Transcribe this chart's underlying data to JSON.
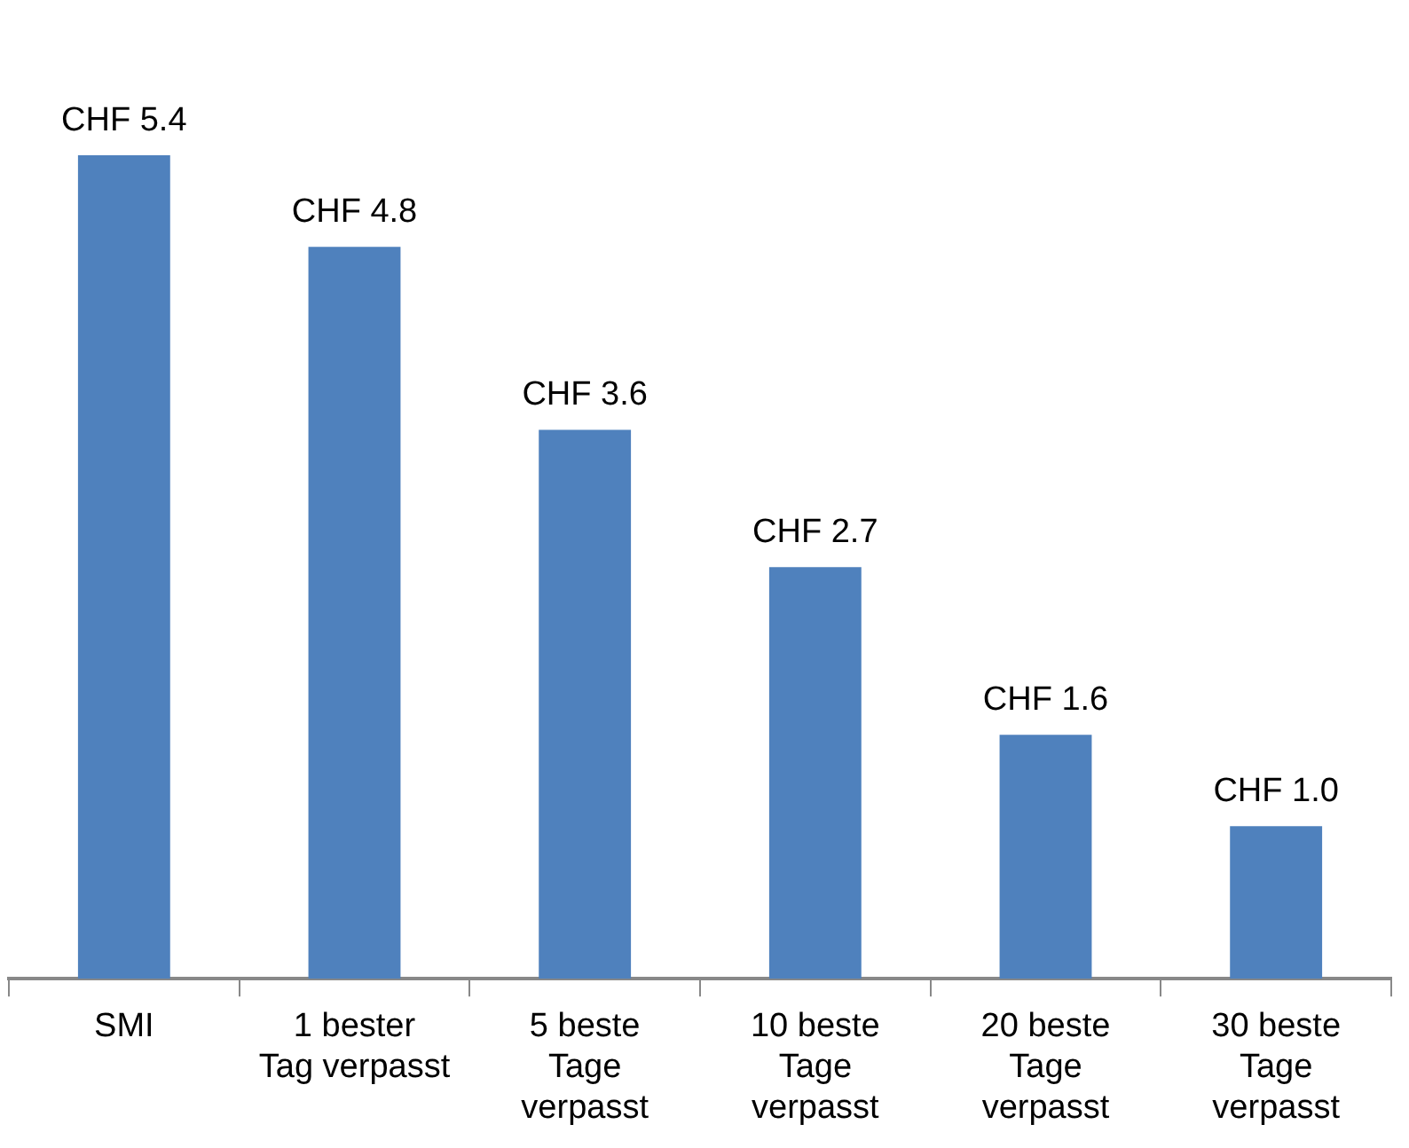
{
  "chart_data": {
    "type": "bar",
    "categories": [
      "SMI",
      "1 bester\nTag verpasst",
      "5 beste\nTage\nverpasst",
      "10 beste\nTage\nverpasst",
      "20 beste\nTage\nverpasst",
      "30 beste\nTage\nverpasst"
    ],
    "values": [
      5.4,
      4.8,
      3.6,
      2.7,
      1.6,
      1.0
    ],
    "value_labels": [
      "CHF 5.4",
      "CHF 4.8",
      "CHF 3.6",
      "CHF 2.7",
      "CHF 1.6",
      "CHF 1.0"
    ],
    "color": "#4f81bd",
    "grid": false,
    "legend": false
  }
}
